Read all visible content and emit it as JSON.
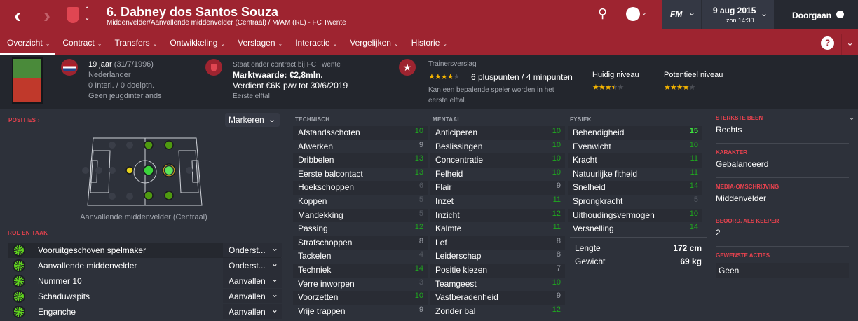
{
  "header": {
    "title": "6. Dabney dos Santos Souza",
    "subtitle": "Middenvelder/Aanvallende middenvelder (Centraal) / M/AM (RL) - FC Twente",
    "fm_label": "FM",
    "date": "9 aug 2015",
    "time": "zon 14:30",
    "continue_label": "Doorgaan",
    "help": "?"
  },
  "tabs": [
    {
      "label": "Overzicht",
      "active": true
    },
    {
      "label": "Contract"
    },
    {
      "label": "Transfers"
    },
    {
      "label": "Ontwikkeling"
    },
    {
      "label": "Verslagen"
    },
    {
      "label": "Interactie"
    },
    {
      "label": "Vergelijken"
    },
    {
      "label": "Historie"
    }
  ],
  "info": {
    "age": "19 jaar",
    "dob": "(31/7/1996)",
    "nationality": "Nederlander",
    "caps": "0 Interl. / 0 doelptn.",
    "youth": "Geen jeugdinterlands",
    "contract_line": "Staat onder contract bij FC Twente",
    "value": "Marktwaarde: €2,8mln.",
    "wage": "Verdient €6K p/w tot 30/6/2019",
    "squad": "Eerste elftal",
    "report_title": "Trainersverslag",
    "report_stars": 4,
    "report_points": "6 pluspunten / 4 minpunten",
    "report_text": "Kan een bepalende speler worden in het eerste elftal.",
    "current_label": "Huidig niveau",
    "current_stars": 3.5,
    "potential_label": "Potentieel niveau",
    "potential_stars": 4
  },
  "positions": {
    "label": "POSITIES",
    "highlight_select": "Markeren",
    "position_name": "Aanvallende middenvelder (Centraal)"
  },
  "roles": {
    "label": "ROL EN TAAK",
    "items": [
      {
        "name": "Vooruitgeschoven spelmaker",
        "duty": "Onderst..."
      },
      {
        "name": "Aanvallende middenvelder",
        "duty": "Onderst..."
      },
      {
        "name": "Nummer 10",
        "duty": "Aanvallen"
      },
      {
        "name": "Schaduwspits",
        "duty": "Aanvallen"
      },
      {
        "name": "Enganche",
        "duty": "Aanvallen"
      }
    ]
  },
  "technical": {
    "label": "TECHNISCH",
    "items": [
      [
        "Afstandsschoten",
        10
      ],
      [
        "Afwerken",
        9
      ],
      [
        "Dribbelen",
        13
      ],
      [
        "Eerste balcontact",
        13
      ],
      [
        "Hoekschoppen",
        6
      ],
      [
        "Koppen",
        5
      ],
      [
        "Mandekking",
        5
      ],
      [
        "Passing",
        12
      ],
      [
        "Strafschoppen",
        8
      ],
      [
        "Tackelen",
        4
      ],
      [
        "Techniek",
        14
      ],
      [
        "Verre inworpen",
        3
      ],
      [
        "Voorzetten",
        10
      ],
      [
        "Vrije trappen",
        9
      ]
    ]
  },
  "mental": {
    "label": "MENTAAL",
    "items": [
      [
        "Anticiperen",
        10
      ],
      [
        "Beslissingen",
        10
      ],
      [
        "Concentratie",
        10
      ],
      [
        "Felheid",
        10
      ],
      [
        "Flair",
        9
      ],
      [
        "Inzet",
        11
      ],
      [
        "Inzicht",
        12
      ],
      [
        "Kalmte",
        11
      ],
      [
        "Lef",
        8
      ],
      [
        "Leiderschap",
        8
      ],
      [
        "Positie kiezen",
        7
      ],
      [
        "Teamgeest",
        10
      ],
      [
        "Vastberadenheid",
        9
      ],
      [
        "Zonder bal",
        12
      ]
    ]
  },
  "physical": {
    "label": "FYSIEK",
    "items": [
      [
        "Behendigheid",
        15
      ],
      [
        "Evenwicht",
        10
      ],
      [
        "Kracht",
        11
      ],
      [
        "Natuurlijke fitheid",
        11
      ],
      [
        "Snelheid",
        14
      ],
      [
        "Sprongkracht",
        5
      ],
      [
        "Uithoudingsvermogen",
        10
      ],
      [
        "Versnelling",
        14
      ]
    ],
    "height_label": "Lengte",
    "height": "172 cm",
    "weight_label": "Gewicht",
    "weight": "69 kg"
  },
  "side": {
    "items": [
      {
        "label": "STERKSTE BEEN",
        "value": "Rechts"
      },
      {
        "label": "KARAKTER",
        "value": "Gebalanceerd"
      },
      {
        "label": "MEDIA-OMSCHRIJVING",
        "value": "Middenvelder"
      },
      {
        "label": "BEOORD. ALS KEEPER",
        "value": "2"
      },
      {
        "label": "GEWENSTE ACTIES",
        "value": "Geen"
      }
    ]
  },
  "colors": {
    "header": "#9e2430",
    "good": "#1fa81f",
    "excellent": "#3ee83e",
    "average": "#9a9ea6",
    "poor": "#555a63"
  }
}
